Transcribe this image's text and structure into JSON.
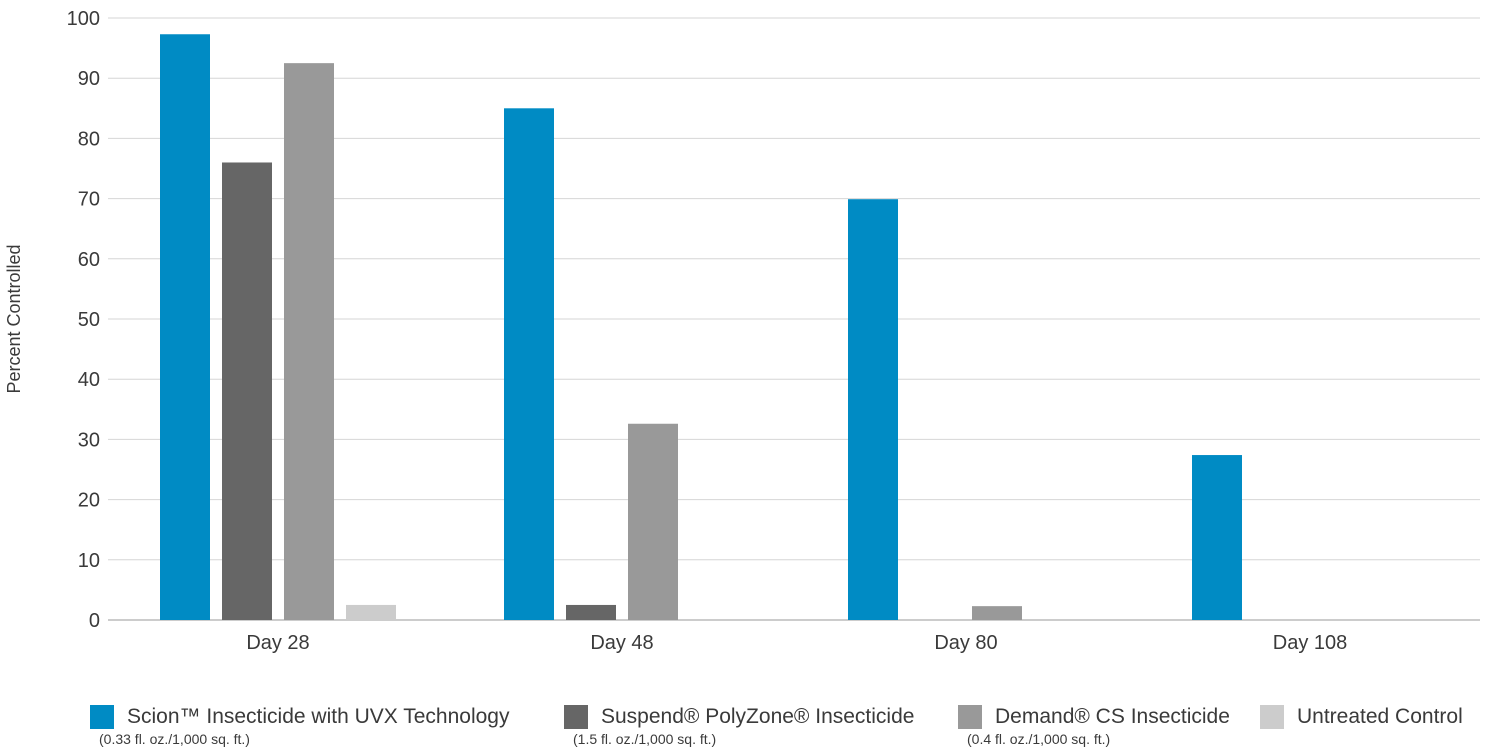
{
  "chart_data": {
    "type": "bar",
    "title": "",
    "xlabel": "",
    "ylabel": "Percent Controlled",
    "ylim": [
      0,
      100
    ],
    "yticks": [
      0,
      10,
      20,
      30,
      40,
      50,
      60,
      70,
      80,
      90,
      100
    ],
    "grid": true,
    "legend_position": "bottom",
    "categories": [
      "Day 28",
      "Day 48",
      "Day 80",
      "Day 108"
    ],
    "series": [
      {
        "name": "Scion™ Insecticide with UVX Technology",
        "note": "(0.33 fl. oz./1,000 sq. ft.)",
        "color": "#008bc4",
        "values": [
          97.3,
          85.0,
          69.9,
          27.4
        ]
      },
      {
        "name": "Suspend® PolyZone® Insecticide",
        "note": "(1.5 fl. oz./1,000 sq. ft.)",
        "color": "#666666",
        "values": [
          76.0,
          2.5,
          0,
          0
        ]
      },
      {
        "name": "Demand® CS Insecticide",
        "note": "(0.4 fl. oz./1,000 sq. ft.)",
        "color": "#999999",
        "values": [
          92.5,
          32.6,
          2.3,
          0
        ]
      },
      {
        "name": "Untreated Control",
        "note": "",
        "color": "#cccccc",
        "values": [
          2.5,
          0,
          0,
          0
        ]
      }
    ]
  }
}
